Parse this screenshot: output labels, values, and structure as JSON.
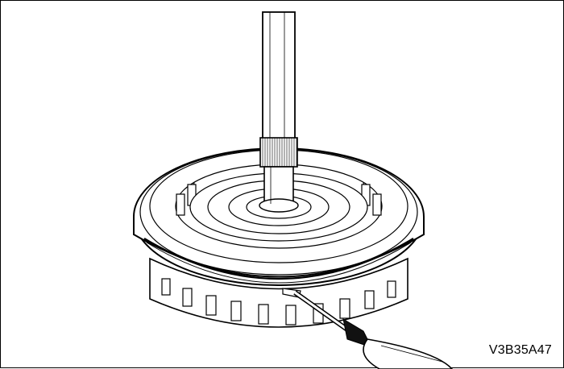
{
  "figure": {
    "code": "V3B35A47"
  },
  "components": {
    "shaft": "input-shaft",
    "drum": "clutch-drum",
    "snap_ring": "snap-ring",
    "tool": "screwdriver"
  }
}
